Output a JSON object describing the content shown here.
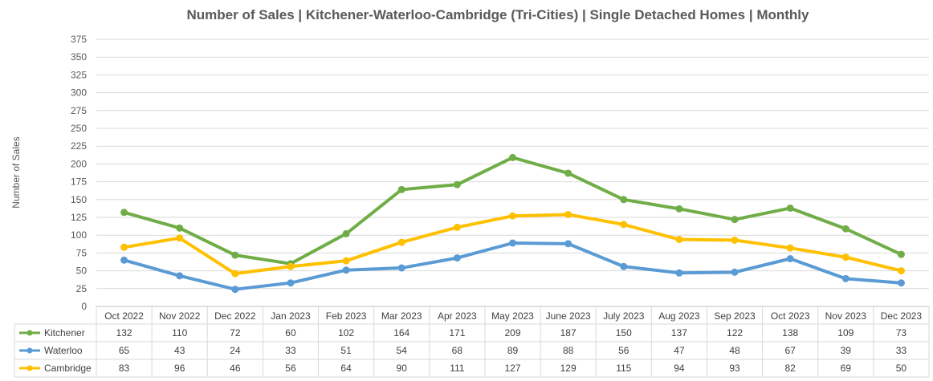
{
  "chart_data": {
    "type": "line",
    "title": "Number of Sales | Kitchener-Waterloo-Cambridge (Tri-Cities) | Single Detached Homes | Monthly",
    "xlabel": "",
    "ylabel": "Number of Sales",
    "ylim": [
      0,
      375
    ],
    "yticks": [
      0,
      25,
      50,
      75,
      100,
      125,
      150,
      175,
      200,
      225,
      250,
      275,
      300,
      325,
      350,
      375
    ],
    "grid": true,
    "legend": "data-table-left",
    "categories": [
      "Oct 2022",
      "Nov 2022",
      "Dec 2022",
      "Jan 2023",
      "Feb 2023",
      "Mar 2023",
      "Apr 2023",
      "May 2023",
      "June 2023",
      "July 2023",
      "Aug 2023",
      "Sep 2023",
      "Oct 2023",
      "Nov 2023",
      "Dec 2023"
    ],
    "series": [
      {
        "name": "Kitchener",
        "color": "#70AD47",
        "values": [
          132,
          110,
          72,
          60,
          102,
          164,
          171,
          209,
          187,
          150,
          137,
          122,
          138,
          109,
          73
        ]
      },
      {
        "name": "Waterloo",
        "color": "#5B9BD5",
        "values": [
          65,
          43,
          24,
          33,
          51,
          54,
          68,
          89,
          88,
          56,
          47,
          48,
          67,
          39,
          33
        ]
      },
      {
        "name": "Cambridge",
        "color": "#FFC000",
        "values": [
          83,
          96,
          46,
          56,
          64,
          90,
          111,
          127,
          129,
          115,
          94,
          93,
          82,
          69,
          50
        ]
      }
    ]
  }
}
